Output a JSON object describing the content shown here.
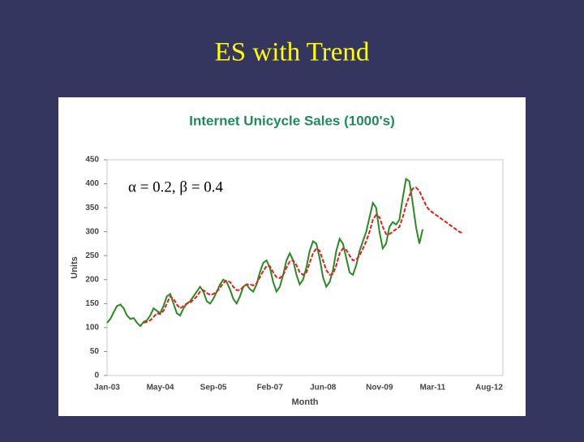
{
  "slide_title": "ES with Trend",
  "chart_data": {
    "type": "line",
    "title": "Internet Unicycle Sales (1000's)",
    "x_label": "Month",
    "y_label": "Units",
    "annotation": "α = 0.2, β = 0.4",
    "categories": [
      "Jan-03",
      null,
      null,
      null,
      null,
      null,
      null,
      null,
      null,
      null,
      null,
      null,
      null,
      null,
      null,
      null,
      "May-04",
      null,
      null,
      null,
      null,
      null,
      null,
      null,
      null,
      null,
      null,
      null,
      null,
      null,
      null,
      null,
      "Sep-05",
      null,
      null,
      null,
      null,
      null,
      null,
      null,
      null,
      null,
      null,
      null,
      null,
      null,
      null,
      null,
      null,
      "Feb-07",
      null,
      null,
      null,
      null,
      null,
      null,
      null,
      null,
      null,
      null,
      null,
      null,
      null,
      null,
      null,
      "Jun-08",
      null,
      null,
      null,
      null,
      null,
      null,
      null,
      null,
      null,
      null,
      null,
      null,
      null,
      null,
      null,
      null,
      "Nov-09",
      null,
      null,
      null,
      null,
      null,
      null,
      null,
      null,
      null,
      null,
      null,
      null,
      null,
      null,
      null,
      "Mar-11",
      null,
      null,
      null,
      null,
      null,
      null,
      null,
      null,
      null,
      null,
      null,
      null,
      null,
      null,
      null,
      null,
      "Aug-12"
    ],
    "series": [
      {
        "color": "#2a8a22",
        "values": [
          110,
          118,
          132,
          145,
          148,
          140,
          125,
          118,
          120,
          110,
          103,
          112,
          115,
          125,
          140,
          135,
          130,
          145,
          165,
          170,
          150,
          130,
          125,
          140,
          150,
          155,
          165,
          175,
          185,
          175,
          155,
          150,
          160,
          175,
          190,
          200,
          195,
          180,
          160,
          150,
          165,
          185,
          190,
          180,
          175,
          190,
          215,
          235,
          240,
          225,
          195,
          175,
          185,
          210,
          240,
          255,
          240,
          210,
          190,
          200,
          225,
          260,
          280,
          275,
          245,
          205,
          185,
          195,
          220,
          260,
          285,
          275,
          245,
          215,
          210,
          230,
          260,
          280,
          300,
          330,
          360,
          350,
          300,
          265,
          275,
          310,
          320,
          315,
          325,
          370,
          410,
          405,
          360,
          310,
          275,
          305,
          null,
          null,
          null,
          null,
          null,
          null,
          null,
          null,
          null,
          null,
          null,
          null,
          null,
          null,
          null,
          null,
          null,
          null,
          null,
          null
        ]
      },
      {
        "color": "#e0201c",
        "values": [
          null,
          null,
          null,
          null,
          null,
          null,
          null,
          null,
          null,
          null,
          null,
          110,
          112,
          115,
          122,
          130,
          128,
          135,
          150,
          165,
          160,
          148,
          140,
          145,
          150,
          152,
          158,
          165,
          175,
          178,
          172,
          168,
          170,
          175,
          183,
          193,
          198,
          195,
          185,
          178,
          178,
          185,
          190,
          190,
          188,
          192,
          205,
          218,
          228,
          228,
          215,
          205,
          203,
          210,
          225,
          238,
          240,
          230,
          215,
          210,
          215,
          235,
          255,
          265,
          260,
          240,
          220,
          210,
          212,
          230,
          255,
          265,
          262,
          250,
          240,
          242,
          250,
          265,
          280,
          300,
          325,
          335,
          330,
          310,
          295,
          295,
          300,
          305,
          310,
          330,
          355,
          375,
          390,
          392,
          385,
          370,
          355,
          345,
          340,
          335,
          330,
          325,
          320,
          315,
          310,
          305,
          300,
          297,
          null,
          null,
          null,
          null,
          null,
          null,
          null,
          null
        ]
      }
    ],
    "ylim": [
      0,
      450
    ],
    "yticks": [
      0,
      50,
      100,
      150,
      200,
      250,
      300,
      350,
      400,
      450
    ]
  }
}
